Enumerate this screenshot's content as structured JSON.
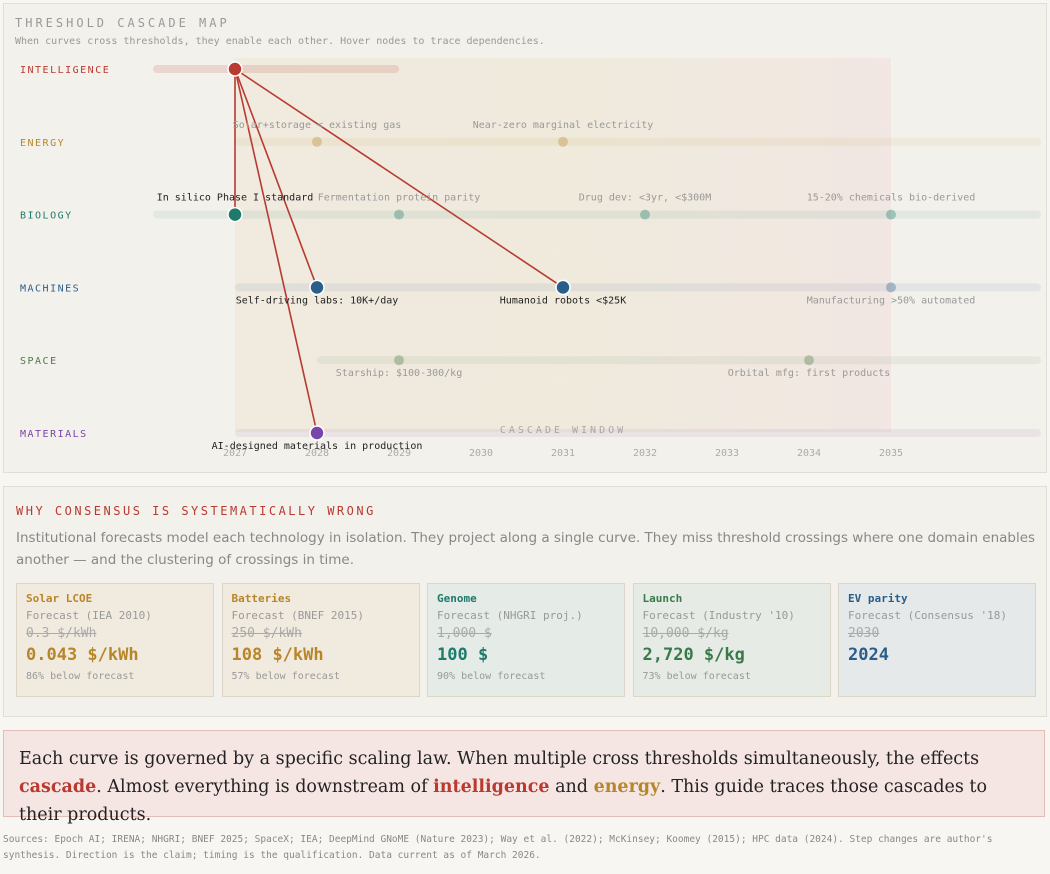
{
  "map": {
    "title": "THRESHOLD CASCADE MAP",
    "subtitle": "When curves cross thresholds, they enable each other. Hover nodes to trace dependencies.",
    "window_label": "CASCADE WINDOW",
    "years": [
      2027,
      2028,
      2029,
      2030,
      2031,
      2032,
      2033,
      2034,
      2035
    ],
    "rows": [
      {
        "name": "INTELLIGENCE",
        "color": "#b83a30"
      },
      {
        "name": "ENERGY",
        "color": "#b8862a"
      },
      {
        "name": "BIOLOGY",
        "color": "#1e7a6a"
      },
      {
        "name": "MACHINES",
        "color": "#2a5e8a"
      },
      {
        "name": "SPACE",
        "color": "#4a7a4a"
      },
      {
        "name": "MATERIALS",
        "color": "#7a45a8"
      }
    ],
    "nodes": [
      {
        "row": 0,
        "year": 2027,
        "highlighted": true
      },
      {
        "row": 1,
        "year": 2028,
        "label": "Solar+storage < existing gas"
      },
      {
        "row": 1,
        "year": 2031,
        "label": "Near-zero marginal electricity"
      },
      {
        "row": 2,
        "year": 2027,
        "label": "In silico Phase I standard",
        "highlighted": true
      },
      {
        "row": 2,
        "year": 2029,
        "label": "Fermentation protein parity"
      },
      {
        "row": 2,
        "year": 2032,
        "label": "Drug dev: <3yr, <$300M"
      },
      {
        "row": 2,
        "year": 2035,
        "label": "15-20% chemicals bio-derived"
      },
      {
        "row": 3,
        "year": 2028,
        "label": "Self-driving labs: 10K+/day",
        "highlighted": true
      },
      {
        "row": 3,
        "year": 2031,
        "label": "Humanoid robots <$25K",
        "highlighted": true
      },
      {
        "row": 3,
        "year": 2035,
        "label": "Manufacturing >50% automated"
      },
      {
        "row": 4,
        "year": 2029,
        "label": "Starship: $100-300/kg"
      },
      {
        "row": 4,
        "year": 2034,
        "label": "Orbital mfg: first products"
      },
      {
        "row": 5,
        "year": 2028,
        "label": "AI-designed materials in production",
        "highlighted": true
      }
    ]
  },
  "consensus": {
    "title": "WHY CONSENSUS IS SYSTEMATICALLY WRONG",
    "text": "Institutional forecasts model each technology in isolation. They project along a single curve. They miss threshold crossings where one domain enables another — and the clustering of crossings in time.",
    "cards": [
      {
        "title": "Solar LCOE",
        "source": "Forecast (IEA 2010)",
        "forecast": "0.3 $/kWh",
        "actual": "0.043 $/kWh",
        "note": "86% below forecast",
        "color": "#b8862a",
        "bg": "#f1ebdf"
      },
      {
        "title": "Batteries",
        "source": "Forecast (BNEF 2015)",
        "forecast": "250 $/kWh",
        "actual": "108 $/kWh",
        "note": "57% below forecast",
        "color": "#b8862a",
        "bg": "#f1ebdf"
      },
      {
        "title": "Genome",
        "source": "Forecast (NHGRI proj.)",
        "forecast": "1,000 $",
        "actual": "100 $",
        "note": "90% below forecast",
        "color": "#1e7a6a",
        "bg": "#e5ebe7"
      },
      {
        "title": "Launch",
        "source": "Forecast (Industry '10)",
        "forecast": "10,000 $/kg",
        "actual": "2,720 $/kg",
        "note": "73% below forecast",
        "color": "#3a7a4a",
        "bg": "#e6ebe5"
      },
      {
        "title": "EV parity",
        "source": "Forecast (Consensus '18)",
        "forecast": "2030",
        "actual": "2024",
        "color": "#2a5e8a",
        "bg": "#e6e9ea"
      }
    ]
  },
  "callout": {
    "parts": [
      {
        "text": "Each curve is governed by a specific scaling law. When multiple cross thresholds simultaneously, the effects "
      },
      {
        "text": "cascade",
        "color": "#b83a30"
      },
      {
        "text": ". Almost everything is downstream of "
      },
      {
        "text": "intelligence",
        "color": "#b83a30"
      },
      {
        "text": " and "
      },
      {
        "text": "energy",
        "color": "#b8862a"
      },
      {
        "text": ". This guide traces those cascades to their products."
      }
    ]
  },
  "sources": "Sources: Epoch AI; IRENA; NHGRI; BNEF 2025; SpaceX; IEA; DeepMind GNoME (Nature 2023); Way et al. (2022); McKinsey; Koomey (2015); HPC data (2024). Step changes are author's synthesis. Direction is the claim; timing is the qualification. Data current as of March 2026."
}
